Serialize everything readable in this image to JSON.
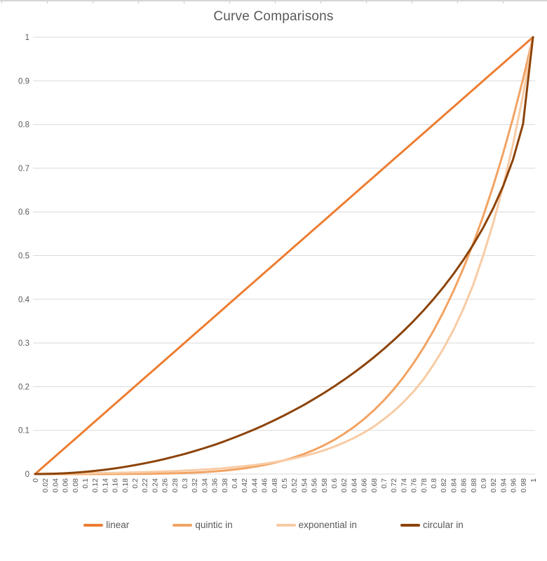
{
  "chart_data": {
    "type": "line",
    "title": "Curve Comparisons",
    "xlabel": "",
    "ylabel": "",
    "xlim": [
      0,
      1
    ],
    "ylim": [
      0,
      1
    ],
    "grid": "horizontal",
    "legend_position": "bottom",
    "grid_color": "#d9d9d9",
    "axis_text_color": "#595959",
    "title_color": "#595959",
    "x": [
      0,
      0.02,
      0.04,
      0.06,
      0.08,
      0.1,
      0.12,
      0.14,
      0.16,
      0.18,
      0.2,
      0.22,
      0.24,
      0.26,
      0.28,
      0.3,
      0.32,
      0.34,
      0.36,
      0.38,
      0.4,
      0.42,
      0.44,
      0.46,
      0.48,
      0.5,
      0.52,
      0.54,
      0.56,
      0.58,
      0.6,
      0.62,
      0.64,
      0.66,
      0.68,
      0.7,
      0.72,
      0.74,
      0.76,
      0.78,
      0.8,
      0.82,
      0.84,
      0.86,
      0.88,
      0.9,
      0.92,
      0.94,
      0.96,
      0.98,
      1
    ],
    "x_tick_labels": [
      "0",
      "0.02",
      "0.04",
      "0.06",
      "0.08",
      "0.1",
      "0.12",
      "0.14",
      "0.16",
      "0.18",
      "0.2",
      "0.22",
      "0.24",
      "0.26",
      "0.28",
      "0.3",
      "0.32",
      "0.34",
      "0.36",
      "0.38",
      "0.4",
      "0.42",
      "0.44",
      "0.46",
      "0.48",
      "0.5",
      "0.52",
      "0.54",
      "0.56",
      "0.58",
      "0.6",
      "0.62",
      "0.64",
      "0.66",
      "0.68",
      "0.7",
      "0.72",
      "0.74",
      "0.76",
      "0.78",
      "0.8",
      "0.82",
      "0.84",
      "0.86",
      "0.88",
      "0.9",
      "0.92",
      "0.94",
      "0.96",
      "0.98",
      "1"
    ],
    "y_tick_labels": [
      "0",
      "0.1",
      "0.2",
      "0.3",
      "0.4",
      "0.5",
      "0.6",
      "0.7",
      "0.8",
      "0.9",
      "1"
    ],
    "series": [
      {
        "name": "linear",
        "color": "#ED7D31",
        "values": [
          0,
          0.02,
          0.04,
          0.06,
          0.08,
          0.1,
          0.12,
          0.14,
          0.16,
          0.18,
          0.2,
          0.22,
          0.24,
          0.26,
          0.28,
          0.3,
          0.32,
          0.34,
          0.36,
          0.38,
          0.4,
          0.42,
          0.44,
          0.46,
          0.48,
          0.5,
          0.52,
          0.54,
          0.56,
          0.58,
          0.6,
          0.62,
          0.64,
          0.66,
          0.68,
          0.7,
          0.72,
          0.74,
          0.76,
          0.78,
          0.8,
          0.82,
          0.84,
          0.86,
          0.88,
          0.9,
          0.92,
          0.94,
          0.96,
          0.98,
          1
        ]
      },
      {
        "name": "quintic in",
        "color": "#F2A363",
        "values": [
          0,
          0,
          0,
          0,
          0,
          1e-05,
          2e-05,
          5e-05,
          0.0001,
          0.00019,
          0.00032,
          0.00052,
          0.0008,
          0.00119,
          0.00172,
          0.00243,
          0.00336,
          0.00454,
          0.00605,
          0.00793,
          0.01024,
          0.01307,
          0.01649,
          0.02059,
          0.02548,
          0.03125,
          0.03802,
          0.04592,
          0.05507,
          0.06564,
          0.07776,
          0.09161,
          0.10737,
          0.12523,
          0.14539,
          0.16807,
          0.19349,
          0.2219,
          0.25355,
          0.28872,
          0.32768,
          0.37074,
          0.41821,
          0.47042,
          0.52773,
          0.59049,
          0.65908,
          0.7339,
          0.81537,
          0.90392,
          1
        ]
      },
      {
        "name": "exponential in",
        "color": "#F8CBA4",
        "values": [
          0,
          0.00112,
          0.00129,
          0.00148,
          0.0017,
          0.00195,
          0.00224,
          0.00257,
          0.00295,
          0.00339,
          0.00391,
          0.00448,
          0.00514,
          0.0059,
          0.00677,
          0.00781,
          0.00896,
          0.01029,
          0.0118,
          0.01354,
          0.01563,
          0.01793,
          0.02057,
          0.0236,
          0.02708,
          0.03125,
          0.03585,
          0.04114,
          0.0472,
          0.05416,
          0.0625,
          0.07171,
          0.08228,
          0.09441,
          0.10833,
          0.125,
          0.14342,
          0.16456,
          0.18882,
          0.21665,
          0.25,
          0.28684,
          0.32911,
          0.37763,
          0.4333,
          0.5,
          0.57367,
          0.65823,
          0.75527,
          0.86661,
          1
        ]
      },
      {
        "name": "circular in",
        "color": "#8C4308",
        "values": [
          0,
          0.0002,
          0.0008,
          0.0018,
          0.0032,
          0.00501,
          0.00723,
          0.00985,
          0.01288,
          0.01634,
          0.0202,
          0.02449,
          0.02919,
          0.03434,
          0.03992,
          0.04595,
          0.05244,
          0.0594,
          0.06685,
          0.07478,
          0.08349,
          0.09248,
          0.102,
          0.11208,
          0.12273,
          0.13397,
          0.14583,
          0.15834,
          0.17151,
          0.18538,
          0.2,
          0.2154,
          0.23162,
          0.24873,
          0.26679,
          0.28586,
          0.30603,
          0.32739,
          0.35008,
          0.37422,
          0.4,
          0.42764,
          0.45741,
          0.48971,
          0.52503,
          0.56411,
          0.60808,
          0.65883,
          0.72,
          0.801,
          1
        ]
      }
    ]
  }
}
